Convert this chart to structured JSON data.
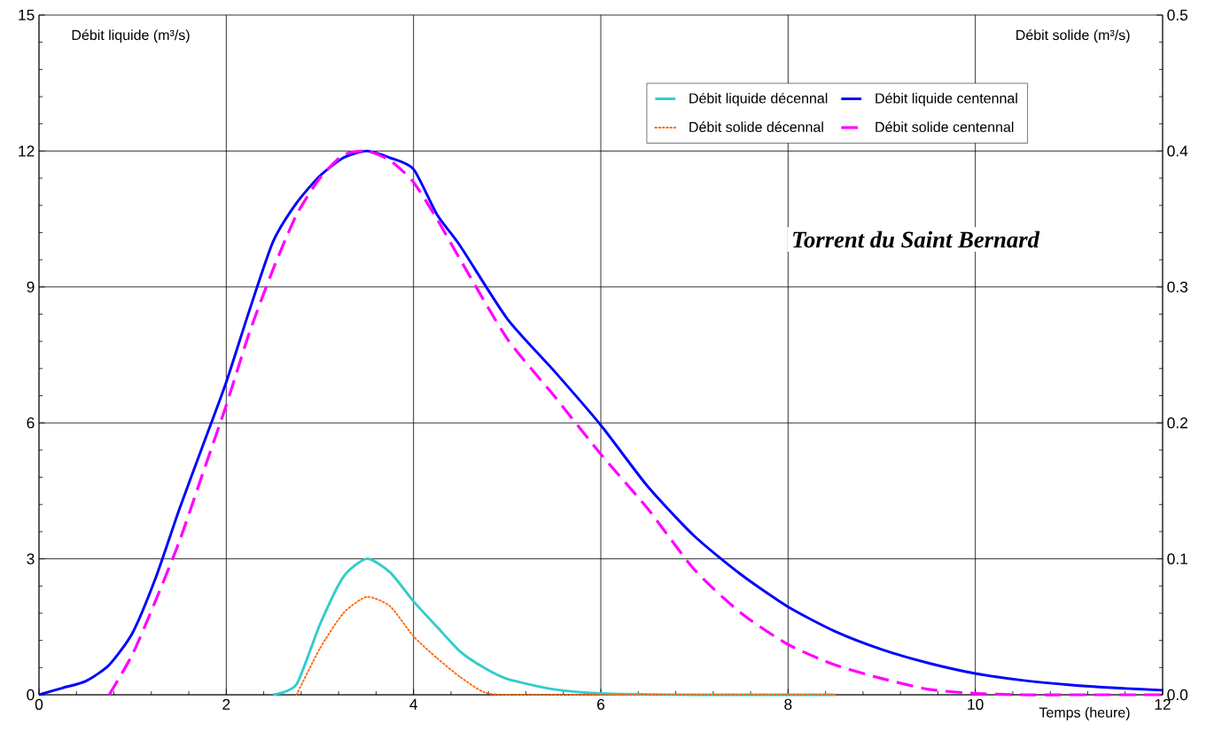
{
  "chart_data": {
    "type": "line",
    "title": "Torrent du Saint Bernard",
    "xlabel": "Temps (heure)",
    "ylabel": "Débit liquide  (m³/s)",
    "y2label": "Débit solide  (m³/s)",
    "xlim": [
      0,
      12
    ],
    "xticks": [
      0,
      2,
      4,
      6,
      8,
      10,
      12
    ],
    "ylim": [
      0,
      15
    ],
    "yticks": [
      0,
      3,
      6,
      9,
      12,
      15
    ],
    "y2lim": [
      0,
      0.5
    ],
    "y2ticks": [
      {
        "value": 0,
        "label": "0.0"
      },
      0.1,
      0.2,
      0.3,
      0.4,
      0.5
    ],
    "grid": true,
    "legend": "top right",
    "marker": "none",
    "series": [
      {
        "name": "Débit liquide décennal",
        "color": "#33cccc",
        "line_style": "solid",
        "axis": "y",
        "x": [
          2.5,
          2.75,
          3.0,
          3.25,
          3.5,
          3.75,
          4.0,
          4.25,
          4.5,
          4.75,
          5.0,
          5.5,
          6.0,
          7.0,
          8.5
        ],
        "values": [
          0,
          0.23,
          1.55,
          2.6,
          3.0,
          2.7,
          2.06,
          1.5,
          0.95,
          0.6,
          0.35,
          0.12,
          0.03,
          0,
          0
        ]
      },
      {
        "name": "Débit liquide centennal",
        "color": "#0000ff",
        "line_style": "solid",
        "axis": "y",
        "x": [
          0,
          0.25,
          0.5,
          0.75,
          1.0,
          1.25,
          1.5,
          1.75,
          2.0,
          2.25,
          2.5,
          2.75,
          3.0,
          3.25,
          3.5,
          3.75,
          4.0,
          4.25,
          4.5,
          5.0,
          5.5,
          6.0,
          6.5,
          7.0,
          7.5,
          8.0,
          8.5,
          9.0,
          9.5,
          10.0,
          10.5,
          11.0,
          11.5,
          12.0
        ],
        "values": [
          0,
          0.15,
          0.3,
          0.66,
          1.37,
          2.6,
          4.1,
          5.5,
          6.9,
          8.5,
          10.0,
          10.85,
          11.45,
          11.85,
          12.0,
          11.85,
          11.6,
          10.6,
          9.9,
          8.3,
          7.15,
          5.95,
          4.6,
          3.5,
          2.65,
          1.94,
          1.4,
          1.0,
          0.7,
          0.47,
          0.32,
          0.22,
          0.15,
          0.1
        ]
      },
      {
        "name": "Débit solide décennal",
        "color": "#ff6600",
        "line_style": "dotted",
        "axis": "y2",
        "x": [
          2.75,
          3.0,
          3.25,
          3.5,
          3.75,
          4.0,
          4.25,
          4.5,
          4.75,
          5.0,
          6.0,
          8.5
        ],
        "values": [
          0,
          0.034,
          0.06,
          0.072,
          0.065,
          0.043,
          0.027,
          0.013,
          0.002,
          0,
          0,
          0
        ]
      },
      {
        "name": "Débit solide centennal",
        "color": "#ff00ff",
        "line_style": "dashed",
        "axis": "y2",
        "x": [
          0.75,
          1.0,
          1.25,
          1.5,
          1.75,
          2.0,
          2.25,
          2.5,
          2.75,
          3.0,
          3.25,
          3.5,
          3.75,
          4.0,
          4.25,
          4.5,
          5.0,
          5.5,
          6.0,
          6.5,
          7.0,
          7.5,
          8.0,
          8.5,
          9.0,
          9.5,
          10.0,
          10.5,
          11.0,
          12.0
        ],
        "values": [
          0,
          0.03,
          0.07,
          0.113,
          0.163,
          0.213,
          0.267,
          0.313,
          0.353,
          0.38,
          0.397,
          0.4,
          0.393,
          0.377,
          0.35,
          0.32,
          0.262,
          0.22,
          0.177,
          0.137,
          0.092,
          0.06,
          0.037,
          0.022,
          0.012,
          0.004,
          0.001,
          0,
          0,
          0
        ]
      }
    ]
  }
}
